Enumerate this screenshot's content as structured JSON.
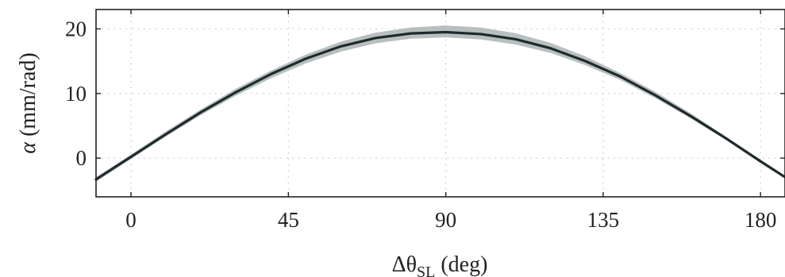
{
  "chart_data": {
    "type": "line",
    "title": "",
    "xlabel": {
      "prefix": "Δθ",
      "subscript": "SL",
      "suffix": " (deg)"
    },
    "ylabel": {
      "symbol": "α",
      "suffix": " (mm/rad)"
    },
    "xlim": [
      -10,
      187
    ],
    "ylim": [
      -6,
      23
    ],
    "x_ticks": [
      0,
      45,
      90,
      135,
      180
    ],
    "y_ticks": [
      0,
      10,
      20
    ],
    "grid": true,
    "grid_style": "dotted",
    "legend": "none",
    "series": [
      {
        "kind": "band",
        "color": "#b8bfbf",
        "x": [
          -10,
          0,
          10,
          20,
          30,
          40,
          50,
          60,
          70,
          80,
          90,
          100,
          110,
          120,
          130,
          140,
          150,
          160,
          170,
          180,
          187
        ],
        "upper": [
          -3.1,
          0.4,
          4.0,
          7.4,
          10.6,
          13.4,
          15.9,
          17.9,
          19.3,
          20.1,
          20.4,
          20.1,
          19.2,
          17.7,
          15.6,
          13.0,
          10.1,
          6.8,
          3.2,
          -0.4,
          -2.9
        ],
        "lower": [
          -3.5,
          0.0,
          3.5,
          6.8,
          9.8,
          12.5,
          14.8,
          16.6,
          17.9,
          18.6,
          18.8,
          18.5,
          17.7,
          16.4,
          14.5,
          12.2,
          9.4,
          6.3,
          3.0,
          -0.6,
          -3.0
        ]
      },
      {
        "kind": "line",
        "color": "#1f2a2c",
        "x": [
          -10,
          0,
          10,
          20,
          30,
          40,
          50,
          60,
          70,
          80,
          90,
          100,
          110,
          120,
          130,
          140,
          150,
          160,
          170,
          180,
          187
        ],
        "y": [
          -3.3,
          0.2,
          3.7,
          7.1,
          10.2,
          13.0,
          15.4,
          17.3,
          18.6,
          19.3,
          19.5,
          19.2,
          18.4,
          17.0,
          15.0,
          12.6,
          9.7,
          6.5,
          3.1,
          -0.5,
          -2.95
        ]
      }
    ]
  }
}
